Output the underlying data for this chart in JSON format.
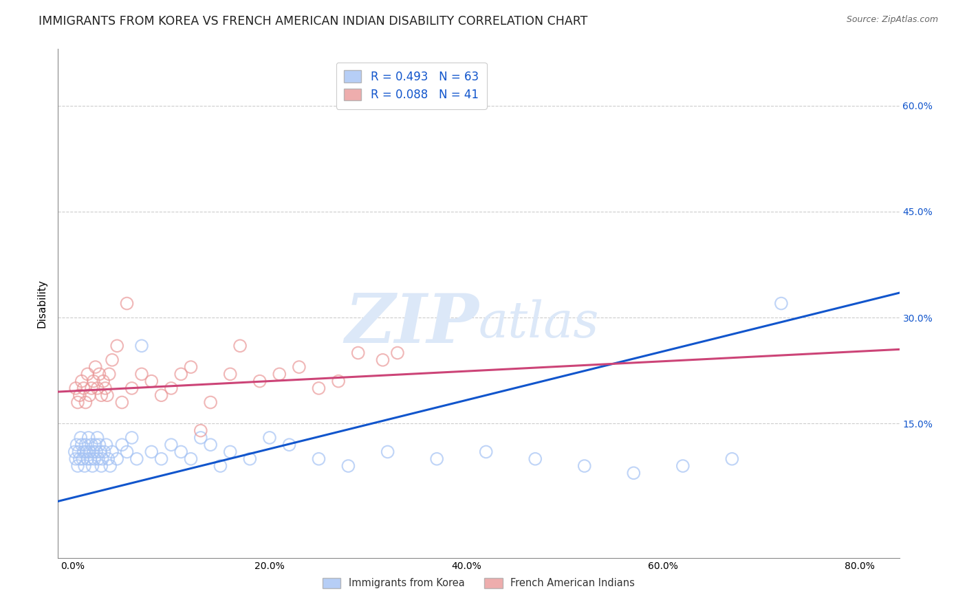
{
  "title": "IMMIGRANTS FROM KOREA VS FRENCH AMERICAN INDIAN DISABILITY CORRELATION CHART",
  "source": "Source: ZipAtlas.com",
  "ylabel": "Disability",
  "x_tick_labels": [
    "0.0%",
    "20.0%",
    "40.0%",
    "60.0%",
    "80.0%"
  ],
  "x_tick_vals": [
    0.0,
    20.0,
    40.0,
    60.0,
    80.0
  ],
  "y_tick_labels": [
    "15.0%",
    "30.0%",
    "45.0%",
    "60.0%"
  ],
  "y_tick_vals": [
    15.0,
    30.0,
    45.0,
    60.0
  ],
  "xlim": [
    -1.5,
    84.0
  ],
  "ylim": [
    -4.0,
    68.0
  ],
  "blue_R": 0.493,
  "blue_N": 63,
  "pink_R": 0.088,
  "pink_N": 41,
  "blue_color": "#a4c2f4",
  "pink_color": "#ea9999",
  "blue_line_color": "#1155cc",
  "pink_line_color": "#cc4477",
  "blue_label": "Immigrants from Korea",
  "pink_label": "French American Indians",
  "watermark_zip": "ZIP",
  "watermark_atlas": "atlas",
  "watermark_color": "#dce8f8",
  "blue_scatter_x": [
    0.2,
    0.3,
    0.4,
    0.5,
    0.6,
    0.7,
    0.8,
    0.9,
    1.0,
    1.1,
    1.2,
    1.3,
    1.4,
    1.5,
    1.6,
    1.7,
    1.8,
    1.9,
    2.0,
    2.1,
    2.2,
    2.3,
    2.4,
    2.5,
    2.6,
    2.7,
    2.8,
    2.9,
    3.0,
    3.2,
    3.4,
    3.6,
    3.8,
    4.0,
    4.5,
    5.0,
    5.5,
    6.0,
    6.5,
    7.0,
    8.0,
    9.0,
    10.0,
    11.0,
    12.0,
    13.0,
    14.0,
    15.0,
    16.0,
    18.0,
    20.0,
    22.0,
    25.0,
    28.0,
    32.0,
    37.0,
    42.0,
    47.0,
    52.0,
    57.0,
    62.0,
    67.0,
    72.0
  ],
  "blue_scatter_y": [
    11,
    10,
    12,
    9,
    11,
    10,
    13,
    12,
    10,
    11,
    9,
    12,
    11,
    10,
    13,
    11,
    10,
    12,
    9,
    11,
    10,
    12,
    11,
    13,
    10,
    12,
    11,
    9,
    10,
    11,
    12,
    10,
    9,
    11,
    10,
    12,
    11,
    13,
    10,
    26,
    11,
    10,
    12,
    11,
    10,
    13,
    12,
    9,
    11,
    10,
    13,
    12,
    10,
    9,
    11,
    10,
    11,
    10,
    9,
    8,
    9,
    10,
    32
  ],
  "pink_scatter_x": [
    0.3,
    0.5,
    0.7,
    0.9,
    1.1,
    1.3,
    1.5,
    1.7,
    1.9,
    2.1,
    2.3,
    2.5,
    2.7,
    2.9,
    3.1,
    3.3,
    3.5,
    3.7,
    4.0,
    4.5,
    5.0,
    5.5,
    6.0,
    7.0,
    8.0,
    9.0,
    10.0,
    11.0,
    12.0,
    13.0,
    14.0,
    16.0,
    17.0,
    19.0,
    21.0,
    23.0,
    25.0,
    27.0,
    29.0,
    31.5,
    33.0
  ],
  "pink_scatter_y": [
    20,
    18,
    19,
    21,
    20,
    18,
    22,
    19,
    20,
    21,
    23,
    20,
    22,
    19,
    21,
    20,
    19,
    22,
    24,
    26,
    18,
    32,
    20,
    22,
    21,
    19,
    20,
    22,
    23,
    14,
    18,
    22,
    26,
    21,
    22,
    23,
    20,
    21,
    25,
    24,
    25
  ],
  "blue_line_x0": -1.5,
  "blue_line_x1": 84.0,
  "blue_line_y0": 4.0,
  "blue_line_y1": 33.5,
  "pink_line_x0": -1.5,
  "pink_line_x1": 84.0,
  "pink_line_y0": 19.5,
  "pink_line_y1": 25.5,
  "background_color": "#ffffff",
  "grid_color": "#cccccc",
  "title_fontsize": 12.5,
  "axis_label_fontsize": 11,
  "tick_fontsize": 10,
  "legend_fontsize": 12
}
